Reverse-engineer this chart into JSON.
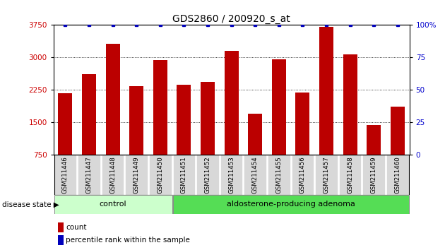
{
  "title": "GDS2860 / 200920_s_at",
  "samples": [
    "GSM211446",
    "GSM211447",
    "GSM211448",
    "GSM211449",
    "GSM211450",
    "GSM211451",
    "GSM211452",
    "GSM211453",
    "GSM211454",
    "GSM211455",
    "GSM211456",
    "GSM211457",
    "GSM211458",
    "GSM211459",
    "GSM211460"
  ],
  "counts": [
    2170,
    2620,
    3310,
    2340,
    2940,
    2370,
    2430,
    3160,
    1700,
    2960,
    2200,
    3700,
    3080,
    1440,
    1870
  ],
  "ylim_left": [
    750,
    3750
  ],
  "ylim_right": [
    0,
    100
  ],
  "yticks_left": [
    750,
    1500,
    2250,
    3000,
    3750
  ],
  "yticks_right": [
    0,
    25,
    50,
    75,
    100
  ],
  "bar_color": "#bb0000",
  "dot_color": "#0000bb",
  "grid_color": "#000000",
  "bg_color": "#ffffff",
  "control_group_count": 5,
  "adenoma_group_count": 10,
  "control_label": "control",
  "adenoma_label": "aldosterone-producing adenoma",
  "disease_state_label": "disease state",
  "legend_count_label": "count",
  "legend_percentile_label": "percentile rank within the sample",
  "control_color": "#ccffcc",
  "adenoma_color": "#55dd55",
  "tick_label_color_left": "#cc0000",
  "tick_label_color_right": "#0000cc",
  "title_fontsize": 10,
  "bar_width": 0.6
}
